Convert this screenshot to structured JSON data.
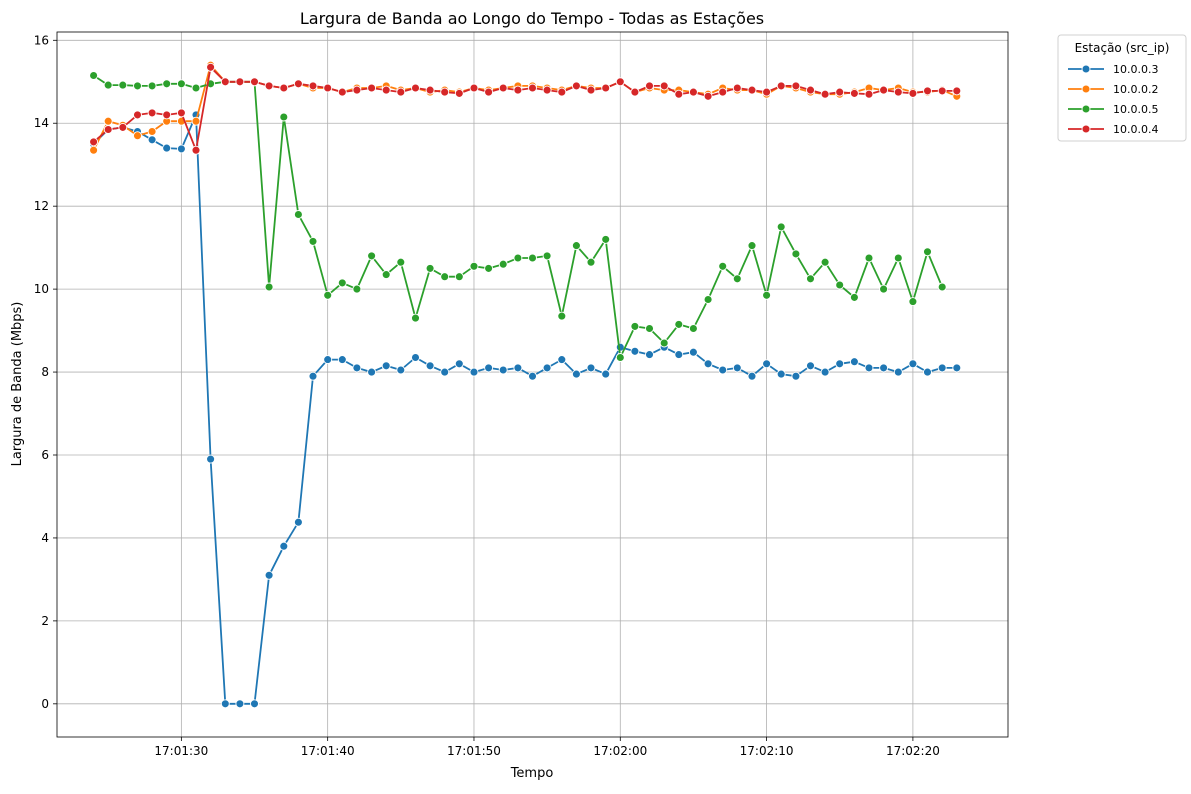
{
  "chart_data": {
    "type": "line",
    "title": "Largura de Banda ao Longo do Tempo - Todas as Estações",
    "xlabel": "Tempo",
    "ylabel": "Largura de Banda (Mbps)",
    "x_start": "17:01:24",
    "x_step_seconds": 1,
    "x_ticks": [
      "17:01:30",
      "17:01:40",
      "17:01:50",
      "17:02:00",
      "17:02:10",
      "17:02:20"
    ],
    "y_ticks": [
      0,
      2,
      4,
      6,
      8,
      10,
      12,
      14,
      16
    ],
    "xlim": [
      "17:01:21.5",
      "17:02:26.5"
    ],
    "ylim": [
      -0.8,
      16.2
    ],
    "grid": true,
    "legend": {
      "title": "Estação (src_ip)",
      "placement": "outside-top-right"
    },
    "series": [
      {
        "name": "10.0.0.3",
        "color": "#1f77b4",
        "values": [
          13.5,
          13.85,
          13.9,
          13.8,
          13.6,
          13.4,
          13.38,
          14.2,
          5.9,
          0,
          0,
          0,
          3.1,
          3.8,
          4.38,
          7.9,
          8.3,
          8.3,
          8.1,
          8.0,
          8.15,
          8.05,
          8.35,
          8.15,
          8.0,
          8.2,
          8.0,
          8.1,
          8.05,
          8.1,
          7.9,
          8.1,
          8.3,
          7.95,
          8.1,
          7.95,
          8.6,
          8.5,
          8.42,
          8.6,
          8.42,
          8.48,
          8.2,
          8.05,
          8.1,
          7.9,
          8.2,
          7.95,
          7.9,
          8.15,
          8.0,
          8.2,
          8.25,
          8.1,
          8.1,
          8.0,
          8.2,
          8.0,
          8.1,
          8.1
        ]
      },
      {
        "name": "10.0.0.2",
        "color": "#ff7f0e",
        "values": [
          13.35,
          14.05,
          13.95,
          13.7,
          13.8,
          14.05,
          14.05,
          14.05,
          15.4,
          15.0,
          15.0,
          15.0,
          14.9,
          14.85,
          14.95,
          14.85,
          14.85,
          14.75,
          14.85,
          14.85,
          14.9,
          14.8,
          14.85,
          14.75,
          14.8,
          14.75,
          14.85,
          14.8,
          14.85,
          14.9,
          14.9,
          14.85,
          14.8,
          14.9,
          14.85,
          14.85,
          15.0,
          14.75,
          14.85,
          14.8,
          14.8,
          14.75,
          14.7,
          14.85,
          14.8,
          14.8,
          14.7,
          14.9,
          14.85,
          14.75,
          14.7,
          14.7,
          14.75,
          14.85,
          14.8,
          14.85,
          14.75,
          14.75,
          14.8,
          14.65
        ]
      },
      {
        "name": "10.0.0.5",
        "color": "#2ca02c",
        "values": [
          15.15,
          14.92,
          14.92,
          14.9,
          14.9,
          14.95,
          14.95,
          14.85,
          14.95,
          15.0,
          15.0,
          15.0,
          10.05,
          14.15,
          11.8,
          11.15,
          9.85,
          10.15,
          10.0,
          10.8,
          10.35,
          10.65,
          9.3,
          10.5,
          10.3,
          10.3,
          10.55,
          10.5,
          10.6,
          10.75,
          10.75,
          10.8,
          9.35,
          11.05,
          10.65,
          11.2,
          8.35,
          9.1,
          9.05,
          8.7,
          9.15,
          9.05,
          9.75,
          10.55,
          10.25,
          11.05,
          9.85,
          11.5,
          10.85,
          10.25,
          10.65,
          10.1,
          9.8,
          10.75,
          10.0,
          10.75,
          9.7,
          10.9,
          10.05
        ]
      },
      {
        "name": "10.0.0.4",
        "color": "#d62728",
        "values": [
          13.55,
          13.85,
          13.9,
          14.2,
          14.25,
          14.2,
          14.25,
          13.35,
          15.35,
          15.0,
          15.0,
          15.0,
          14.9,
          14.85,
          14.95,
          14.9,
          14.85,
          14.75,
          14.8,
          14.85,
          14.8,
          14.75,
          14.85,
          14.8,
          14.75,
          14.72,
          14.85,
          14.75,
          14.85,
          14.8,
          14.85,
          14.8,
          14.75,
          14.9,
          14.8,
          14.85,
          15.0,
          14.75,
          14.9,
          14.9,
          14.7,
          14.75,
          14.65,
          14.75,
          14.85,
          14.8,
          14.75,
          14.9,
          14.9,
          14.8,
          14.7,
          14.75,
          14.72,
          14.7,
          14.8,
          14.75,
          14.72,
          14.78,
          14.78,
          14.78
        ]
      }
    ]
  }
}
